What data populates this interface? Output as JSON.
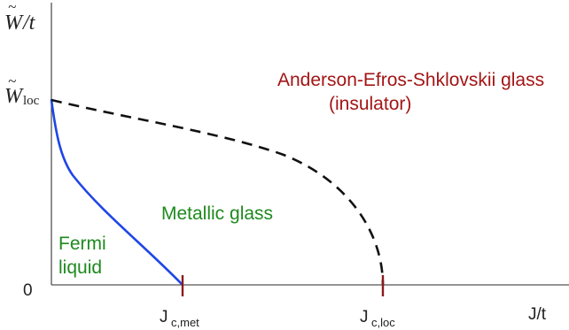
{
  "axes": {
    "y_label_base": "W",
    "y_label_suffix": "/t",
    "y_tick_wloc_base": "W",
    "y_tick_wloc_sub": "loc",
    "y_tick_zero": "0",
    "x_label": "J/t",
    "x_tick_met_base": "J",
    "x_tick_met_sub": "c,met",
    "x_tick_loc_base": "J",
    "x_tick_loc_sub": "c,loc"
  },
  "regions": {
    "aes_line1": "Anderson-Efros-Shklovskii glass",
    "aes_line2": "(insulator)",
    "metallic": "Metallic glass",
    "fermi_line1": "Fermi",
    "fermi_line2": "liquid"
  },
  "colors": {
    "axis": "#555555",
    "fermi_boundary": "#1f46e6",
    "insulator_boundary": "#111111",
    "tick_marks": "#8b1a1a",
    "aes_text": "#a31515",
    "green_text": "#1e8a1e",
    "label_text": "#222222"
  }
}
